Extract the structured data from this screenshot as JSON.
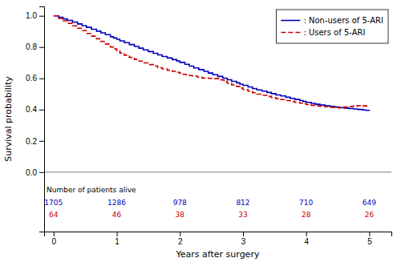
{
  "chart_data": {
    "type": "step",
    "xlabel": "Years after surgery",
    "ylabel": "Survival probability",
    "xlim": [
      -0.15,
      5.35
    ],
    "ylim": [
      -0.38,
      1.06
    ],
    "xticks": [
      0,
      1,
      2,
      3,
      4,
      5
    ],
    "yticks": [
      {
        "value": 0.0,
        "label": "0.0"
      },
      {
        "value": 0.2,
        "label": "0.2"
      },
      {
        "value": 0.4,
        "label": "0.4"
      },
      {
        "value": 0.6,
        "label": "0.6"
      },
      {
        "value": 0.8,
        "label": "0.8"
      },
      {
        "value": 1.0,
        "label": "1.0"
      }
    ],
    "legend": "upper right",
    "hline": 0,
    "risk_label": "Number of patients alive",
    "risk_x": [
      0,
      1,
      2,
      3,
      4,
      5
    ],
    "series": [
      {
        "name": ": Non-users of 5-ARI",
        "color": "#0000bb",
        "line_style": "solid",
        "at_risk": [
          1705,
          1286,
          978,
          812,
          710,
          649
        ],
        "x": [
          0.0,
          0.08,
          0.15,
          0.22,
          0.3,
          0.38,
          0.45,
          0.52,
          0.6,
          0.68,
          0.75,
          0.82,
          0.9,
          0.95,
          1.0,
          1.05,
          1.12,
          1.2,
          1.28,
          1.35,
          1.42,
          1.5,
          1.58,
          1.65,
          1.72,
          1.8,
          1.88,
          1.95,
          2.0,
          2.08,
          2.15,
          2.22,
          2.3,
          2.38,
          2.45,
          2.52,
          2.6,
          2.68,
          2.75,
          2.82,
          2.9,
          2.95,
          3.0,
          3.08,
          3.15,
          3.22,
          3.3,
          3.38,
          3.45,
          3.52,
          3.6,
          3.68,
          3.75,
          3.82,
          3.9,
          3.95,
          4.0,
          4.08,
          4.15,
          4.22,
          4.3,
          4.38,
          4.45,
          4.52,
          4.6,
          4.68,
          4.75,
          4.82,
          4.9,
          4.95,
          5.0
        ],
        "values": [
          1.0,
          0.99,
          0.98,
          0.97,
          0.96,
          0.948,
          0.937,
          0.926,
          0.914,
          0.902,
          0.891,
          0.879,
          0.866,
          0.858,
          0.85,
          0.84,
          0.828,
          0.816,
          0.804,
          0.793,
          0.782,
          0.771,
          0.76,
          0.75,
          0.74,
          0.73,
          0.72,
          0.711,
          0.702,
          0.69,
          0.678,
          0.667,
          0.656,
          0.645,
          0.634,
          0.623,
          0.612,
          0.601,
          0.591,
          0.581,
          0.571,
          0.563,
          0.555,
          0.545,
          0.535,
          0.526,
          0.518,
          0.51,
          0.502,
          0.494,
          0.487,
          0.479,
          0.472,
          0.465,
          0.458,
          0.452,
          0.446,
          0.44,
          0.434,
          0.429,
          0.424,
          0.42,
          0.416,
          0.413,
          0.41,
          0.407,
          0.404,
          0.401,
          0.398,
          0.395,
          0.392
        ]
      },
      {
        "name": ": Users of 5-ARI",
        "color": "#cc0000",
        "line_style": "dashed",
        "at_risk": [
          64,
          46,
          38,
          33,
          28,
          26
        ],
        "x": [
          0.0,
          0.08,
          0.15,
          0.22,
          0.3,
          0.38,
          0.45,
          0.52,
          0.6,
          0.68,
          0.75,
          0.82,
          0.9,
          0.95,
          1.0,
          1.05,
          1.12,
          1.2,
          1.28,
          1.35,
          1.42,
          1.5,
          1.58,
          1.65,
          1.72,
          1.8,
          1.88,
          1.95,
          2.0,
          2.05,
          2.1,
          2.15,
          2.2,
          2.28,
          2.35,
          2.45,
          2.55,
          2.65,
          2.7,
          2.75,
          2.82,
          2.9,
          2.95,
          3.0,
          3.08,
          3.15,
          3.22,
          3.3,
          3.38,
          3.45,
          3.52,
          3.6,
          3.68,
          3.75,
          3.82,
          3.9,
          3.95,
          4.0,
          4.08,
          4.15,
          4.22,
          4.3,
          4.38,
          4.45,
          4.52,
          4.6,
          4.68,
          4.75,
          4.82,
          4.9,
          4.95,
          5.0
        ],
        "values": [
          1.0,
          0.984,
          0.968,
          0.952,
          0.936,
          0.92,
          0.905,
          0.887,
          0.87,
          0.853,
          0.836,
          0.82,
          0.8,
          0.788,
          0.776,
          0.762,
          0.748,
          0.734,
          0.721,
          0.71,
          0.699,
          0.688,
          0.678,
          0.668,
          0.66,
          0.652,
          0.645,
          0.638,
          0.632,
          0.626,
          0.622,
          0.618,
          0.614,
          0.608,
          0.602,
          0.6,
          0.598,
          0.59,
          0.58,
          0.568,
          0.558,
          0.548,
          0.538,
          0.528,
          0.518,
          0.508,
          0.499,
          0.491,
          0.484,
          0.477,
          0.47,
          0.464,
          0.458,
          0.452,
          0.446,
          0.441,
          0.437,
          0.432,
          0.428,
          0.424,
          0.421,
          0.418,
          0.415,
          0.413,
          0.411,
          0.416,
          0.42,
          0.424,
          0.426,
          0.424,
          0.422,
          0.418
        ]
      }
    ]
  }
}
